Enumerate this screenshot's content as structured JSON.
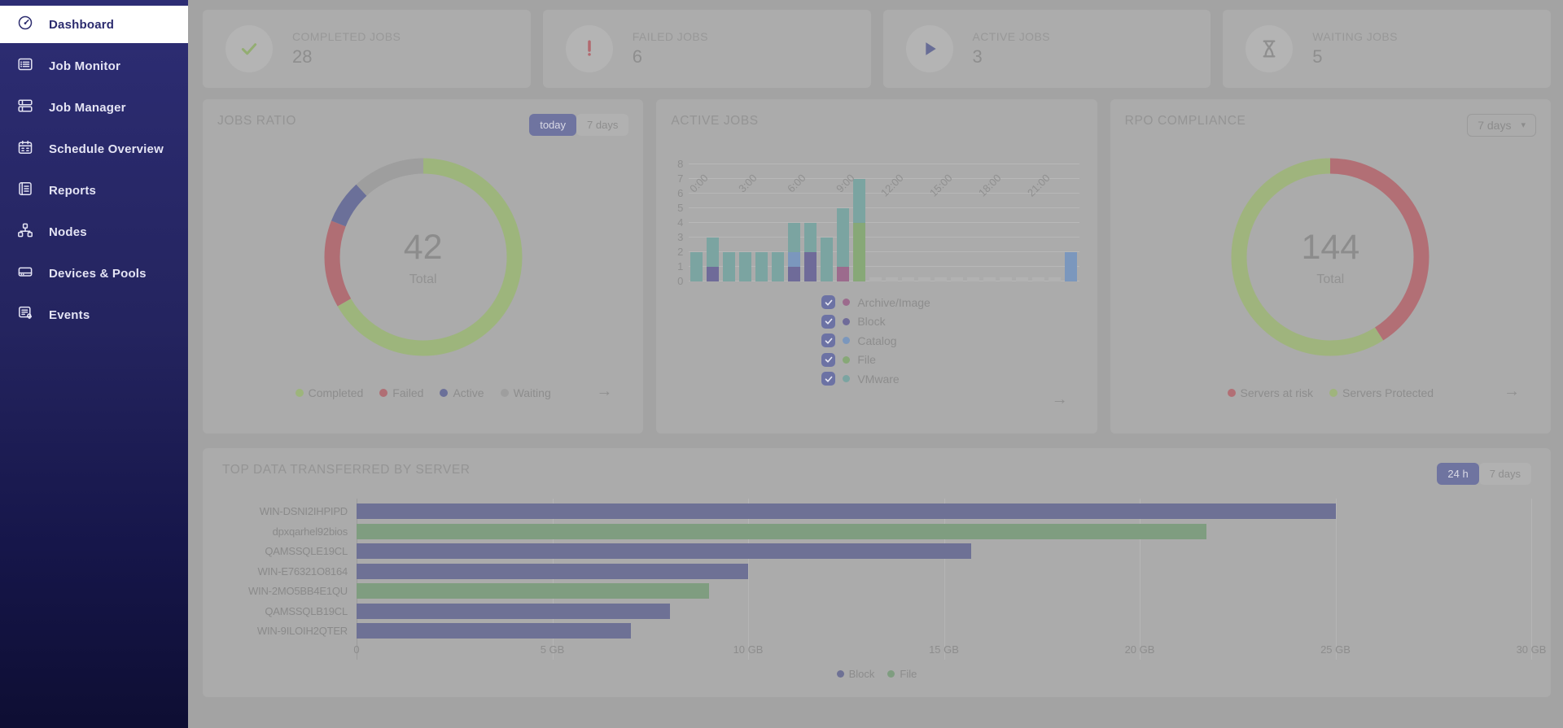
{
  "icons": {
    "arrow_right": "→",
    "caret_down": "▾",
    "checkmark": "✓"
  },
  "colors": {
    "sidebar_top": "#2d2d74",
    "sidebar_bottom": "#0e0e33",
    "page_bg": "#a3a3a3",
    "panel_bg": "#ababab",
    "accent_indigo": "#6f74a0",
    "completed_green": "#93ad72",
    "failed_red": "#b2696f",
    "active_blue": "#686d96",
    "waiting_gray": "#8f8f8f"
  },
  "sidebar": {
    "items": [
      {
        "label": "Dashboard",
        "icon": "gauge",
        "active": true
      },
      {
        "label": "Job Monitor",
        "icon": "monitor",
        "active": false
      },
      {
        "label": "Job Manager",
        "icon": "manager",
        "active": false
      },
      {
        "label": "Schedule Overview",
        "icon": "calendar",
        "active": false
      },
      {
        "label": "Reports",
        "icon": "reports",
        "active": false
      },
      {
        "label": "Nodes",
        "icon": "nodes",
        "active": false
      },
      {
        "label": "Devices & Pools",
        "icon": "devices",
        "active": false
      },
      {
        "label": "Events",
        "icon": "events",
        "active": false
      }
    ]
  },
  "stats": [
    {
      "label": "COMPLETED JOBS",
      "value": "28",
      "icon": "check",
      "color": "#93ad72"
    },
    {
      "label": "FAILED JOBS",
      "value": "6",
      "icon": "exclaim",
      "color": "#b2696f"
    },
    {
      "label": "ACTIVE JOBS",
      "value": "3",
      "icon": "play",
      "color": "#686d96"
    },
    {
      "label": "WAITING JOBS",
      "value": "5",
      "icon": "hourglass",
      "color": "#8f8f8f"
    }
  ],
  "panels": {
    "jobs_ratio": {
      "title": "JOBS RATIO",
      "toggle": [
        "today",
        "7 days"
      ],
      "selected": "today"
    },
    "active_jobs": {
      "title": "ACTIVE JOBS"
    },
    "rpo": {
      "title": "RPO COMPLIANCE",
      "dropdown": "7 days"
    },
    "top_data": {
      "title": "TOP DATA TRANSFERRED BY SERVER",
      "toggle": [
        "24 h",
        "7 days"
      ],
      "selected": "24 h"
    }
  },
  "chart_data": [
    {
      "id": "jobs-ratio",
      "type": "pie",
      "donut": true,
      "title": "JOBS RATIO",
      "center_value": "42",
      "center_label": "Total",
      "slices": [
        {
          "name": "Completed",
          "value": 28,
          "color": "#9db57c"
        },
        {
          "name": "Failed",
          "value": 6,
          "color": "#b06e74"
        },
        {
          "name": "Active",
          "value": 3,
          "color": "#6b7099"
        },
        {
          "name": "Waiting",
          "value": 5,
          "color": "#9e9e9e"
        }
      ],
      "legend_position": "bottom"
    },
    {
      "id": "active-jobs",
      "type": "bar",
      "stacked": true,
      "title": "ACTIVE JOBS",
      "categories": [
        "0:00",
        "1:00",
        "2:00",
        "3:00",
        "4:00",
        "5:00",
        "6:00",
        "7:00",
        "8:00",
        "9:00",
        "10:00",
        "11:00",
        "12:00",
        "13:00",
        "14:00",
        "15:00",
        "16:00",
        "17:00",
        "18:00",
        "19:00",
        "20:00",
        "21:00",
        "22:00",
        "23:00"
      ],
      "x_tick_labels": [
        "0:00",
        "3:00",
        "6:00",
        "9:00",
        "12:00",
        "15:00",
        "18:00",
        "21:00"
      ],
      "ylim": [
        0,
        8
      ],
      "y_ticks": [
        0,
        1,
        2,
        3,
        4,
        5,
        6,
        7,
        8
      ],
      "grid": true,
      "series": [
        {
          "name": "Archive/Image",
          "color": "#9c6b8d",
          "values": [
            0,
            0,
            0,
            0,
            0,
            0,
            0,
            0,
            0,
            1,
            0,
            0,
            0,
            0,
            0,
            0,
            0,
            0,
            0,
            0,
            0,
            0,
            0,
            0
          ]
        },
        {
          "name": "Block",
          "color": "#6f6b99",
          "values": [
            0,
            1,
            0,
            0,
            0,
            0,
            1,
            2,
            0,
            0,
            0,
            0,
            0,
            0,
            0,
            0,
            0,
            0,
            0,
            0,
            0,
            0,
            0,
            0
          ]
        },
        {
          "name": "Catalog",
          "color": "#7b97bd",
          "values": [
            0,
            0,
            0,
            0,
            0,
            0,
            1,
            0,
            0,
            0,
            0,
            0,
            0,
            0,
            0,
            0,
            0,
            0,
            0,
            0,
            0,
            0,
            0,
            2
          ]
        },
        {
          "name": "File",
          "color": "#87a877",
          "values": [
            0,
            0,
            0,
            0,
            0,
            0,
            0,
            0,
            0,
            0,
            4,
            0,
            0,
            0,
            0,
            0,
            0,
            0,
            0,
            0,
            0,
            0,
            0,
            0
          ]
        },
        {
          "name": "VMware",
          "color": "#7ba4a1",
          "values": [
            2,
            2,
            2,
            2,
            2,
            2,
            2,
            2,
            3,
            4,
            3,
            0,
            0,
            0,
            0,
            0,
            0,
            0,
            0,
            0,
            0,
            0,
            0,
            0
          ]
        }
      ],
      "zero_stub_color": "#b2b2b2",
      "legend": [
        "Archive/Image",
        "Block",
        "Catalog",
        "File",
        "VMware"
      ],
      "legend_all_checked": true
    },
    {
      "id": "rpo-compliance",
      "type": "pie",
      "donut": true,
      "title": "RPO COMPLIANCE",
      "center_value": "144",
      "center_label": "Total",
      "slices": [
        {
          "name": "Servers at risk",
          "value": 59,
          "color": "#b26f75"
        },
        {
          "name": "Servers Protected",
          "value": 85,
          "color": "#9fb47d"
        }
      ],
      "legend_position": "bottom"
    },
    {
      "id": "top-data-transferred",
      "type": "bar",
      "orientation": "horizontal",
      "title": "TOP DATA TRANSFERRED BY SERVER",
      "categories": [
        "WIN-DSNI2IHPIPD",
        "dpxqarhel92bios",
        "QAMSSQLE19CL",
        "WIN-E76321O8164",
        "WIN-2MO5BB4E1QU",
        "QAMSSQLB19CL",
        "WIN-9ILOIH2QTER"
      ],
      "values_gb": [
        25,
        21.7,
        15.7,
        10,
        9,
        8,
        7
      ],
      "bar_series": [
        "Block",
        "File",
        "Block",
        "Block",
        "File",
        "Block",
        "Block"
      ],
      "series_colors": {
        "Block": "#6e7195",
        "File": "#7f9d80"
      },
      "xlim": [
        0,
        30
      ],
      "x_ticks": [
        "0",
        "5 GB",
        "10 GB",
        "15 GB",
        "20 GB",
        "25 GB",
        "30 GB"
      ],
      "legend": [
        "Block",
        "File"
      ]
    }
  ]
}
